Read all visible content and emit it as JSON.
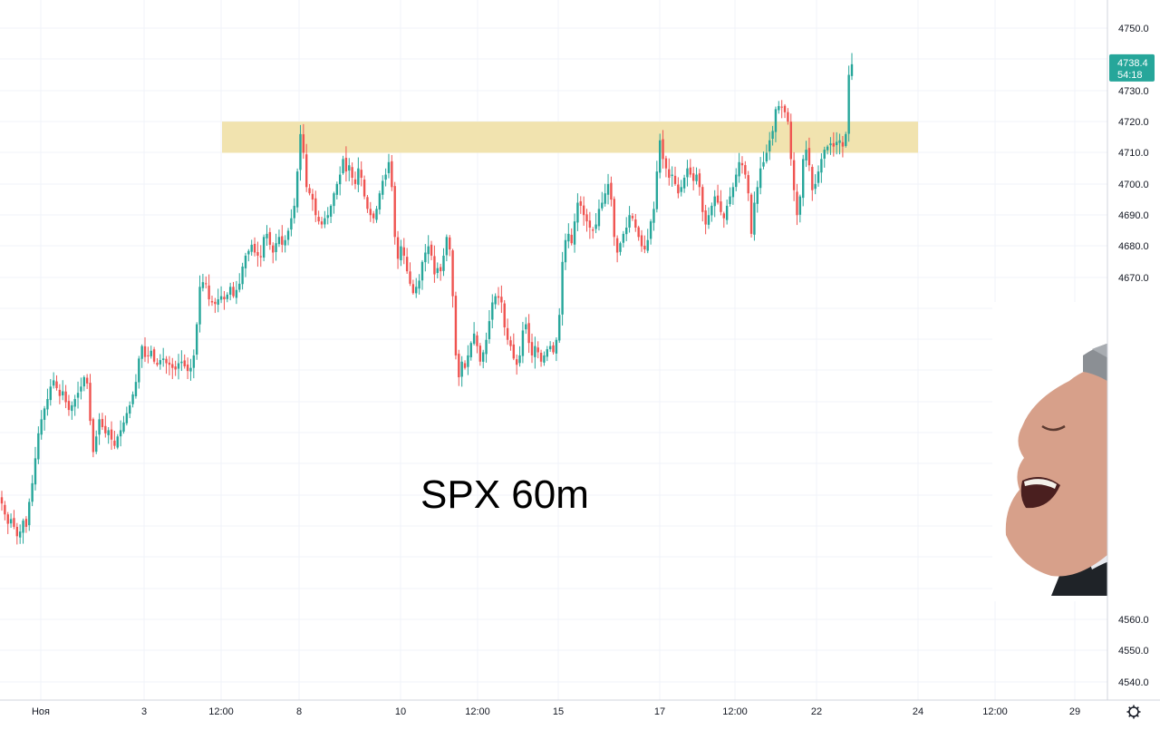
{
  "chart_data": {
    "type": "candlestick",
    "symbol_label": "SPX 60m",
    "x_axis": {
      "tick_labels": [
        "Ноя",
        "3",
        "12:00",
        "8",
        "10",
        "12:00",
        "15",
        "17",
        "12:00",
        "22",
        "24",
        "12:00",
        "29"
      ]
    },
    "y_axis": {
      "tick_labels": [
        "4750.0",
        "4740.0",
        "4730.0",
        "4720.0",
        "4710.0",
        "4700.0",
        "4690.0",
        "4680.0",
        "4670.0",
        "4560.0",
        "4550.0",
        "4540.0"
      ],
      "range": [
        4532,
        4760
      ]
    },
    "grid": true,
    "colors": {
      "up": "#26a69a",
      "down": "#ef5350",
      "zone": "#f0e2ab",
      "badge": "#26a69a",
      "grid": "#f0f3fa"
    },
    "resistance_zone": [
      4710,
      4720
    ],
    "last_price": "4738.4",
    "countdown": "54:18",
    "closes": [
      4597.5,
      4594.0,
      4591.0,
      4592.5,
      4590.0,
      4587.0,
      4588.5,
      4592.0,
      4590.0,
      4598.0,
      4604.0,
      4612.0,
      4620.0,
      4624.5,
      4628.0,
      4631.0,
      4635.0,
      4637.0,
      4634.5,
      4632.0,
      4633.5,
      4630.0,
      4627.5,
      4629.0,
      4631.0,
      4633.0,
      4635.0,
      4638.0,
      4636.0,
      4624.0,
      4614.0,
      4619.0,
      4624.5,
      4622.0,
      4620.0,
      4621.0,
      4618.0,
      4616.0,
      4619.0,
      4621.0,
      4623.5,
      4626.5,
      4629.0,
      4632.5,
      4636.5,
      4644.0,
      4648.0,
      4644.5,
      4645.0,
      4646.5,
      4643.0,
      4642.0,
      4643.5,
      4644.0,
      4642.5,
      4642.0,
      4641.0,
      4640.5,
      4642.5,
      4643.0,
      4641.5,
      4640.0,
      4641.0,
      4645.0,
      4655.0,
      4667.0,
      4668.5,
      4668.0,
      4663.0,
      4662.0,
      4661.5,
      4663.0,
      4664.0,
      4663.0,
      4664.5,
      4667.0,
      4664.0,
      4666.0,
      4668.0,
      4673.5,
      4677.0,
      4678.5,
      4680.5,
      4678.0,
      4677.0,
      4676.5,
      4683.0,
      4684.0,
      4680.5,
      4678.0,
      4681.0,
      4683.0,
      4680.5,
      4682.0,
      4685.0,
      4689.0,
      4693.0,
      4704.0,
      4716.0,
      4710.0,
      4699.0,
      4697.0,
      4695.0,
      4690.0,
      4688.0,
      4687.0,
      4689.0,
      4690.0,
      4693.0,
      4697.0,
      4700.0,
      4703.0,
      4708.0,
      4704.0,
      4706.0,
      4702.0,
      4700.0,
      4705.0,
      4702.0,
      4696.0,
      4692.0,
      4690.0,
      4689.0,
      4692.0,
      4697.0,
      4701.0,
      4703.0,
      4707.0,
      4699.0,
      4683.0,
      4676.0,
      4680.0,
      4677.0,
      4672.0,
      4668.0,
      4665.0,
      4667.0,
      4669.0,
      4675.0,
      4678.0,
      4680.0,
      4677.0,
      4671.0,
      4673.0,
      4672.0,
      4677.0,
      4683.0,
      4679.0,
      4664.0,
      4645.0,
      4638.0,
      4643.0,
      4641.0,
      4645.0,
      4649.0,
      4652.0,
      4648.0,
      4643.0,
      4646.0,
      4650.0,
      4656.0,
      4662.0,
      4664.0,
      4663.5,
      4662.0,
      4654.0,
      4650.0,
      4648.0,
      4644.0,
      4642.0,
      4645.0,
      4653.0,
      4655.0,
      4649.0,
      4645.0,
      4648.0,
      4646.0,
      4643.0,
      4645.0,
      4647.0,
      4648.0,
      4646.0,
      4650.0,
      4658.0,
      4675.0,
      4682.0,
      4684.0,
      4681.0,
      4688.0,
      4694.0,
      4693.0,
      4690.0,
      4688.0,
      4686.0,
      4685.0,
      4687.0,
      4692.0,
      4694.0,
      4697.0,
      4700.0,
      4695.0,
      4683.0,
      4678.0,
      4681.0,
      4684.0,
      4686.0,
      4690.0,
      4689.0,
      4686.0,
      4683.0,
      4680.0,
      4679.0,
      4682.0,
      4688.0,
      4692.0,
      4704.0,
      4714.0,
      4708.0,
      4705.0,
      4702.0,
      4703.0,
      4700.0,
      4697.0,
      4699.0,
      4702.0,
      4705.0,
      4703.0,
      4701.0,
      4703.0,
      4699.0,
      4691.0,
      4687.0,
      4690.0,
      4693.0,
      4696.0,
      4694.0,
      4691.0,
      4689.0,
      4693.0,
      4696.0,
      4699.0,
      4703.0,
      4707.0,
      4706.0,
      4703.0,
      4697.0,
      4684.0,
      4694.0,
      4699.0,
      4705.0,
      4707.0,
      4710.0,
      4714.0,
      4717.0,
      4724.0,
      4725.0,
      4724.5,
      4723.0,
      4720.0,
      4708.0,
      4698.0,
      4690.0,
      4696.0,
      4708.0,
      4711.0,
      4706.0,
      4698.0,
      4700.0,
      4704.0,
      4708.0,
      4711.0,
      4712.0,
      4713.0,
      4712.0,
      4713.5,
      4714.0,
      4712.0,
      4716.0,
      4735.0,
      4738.4
    ]
  }
}
